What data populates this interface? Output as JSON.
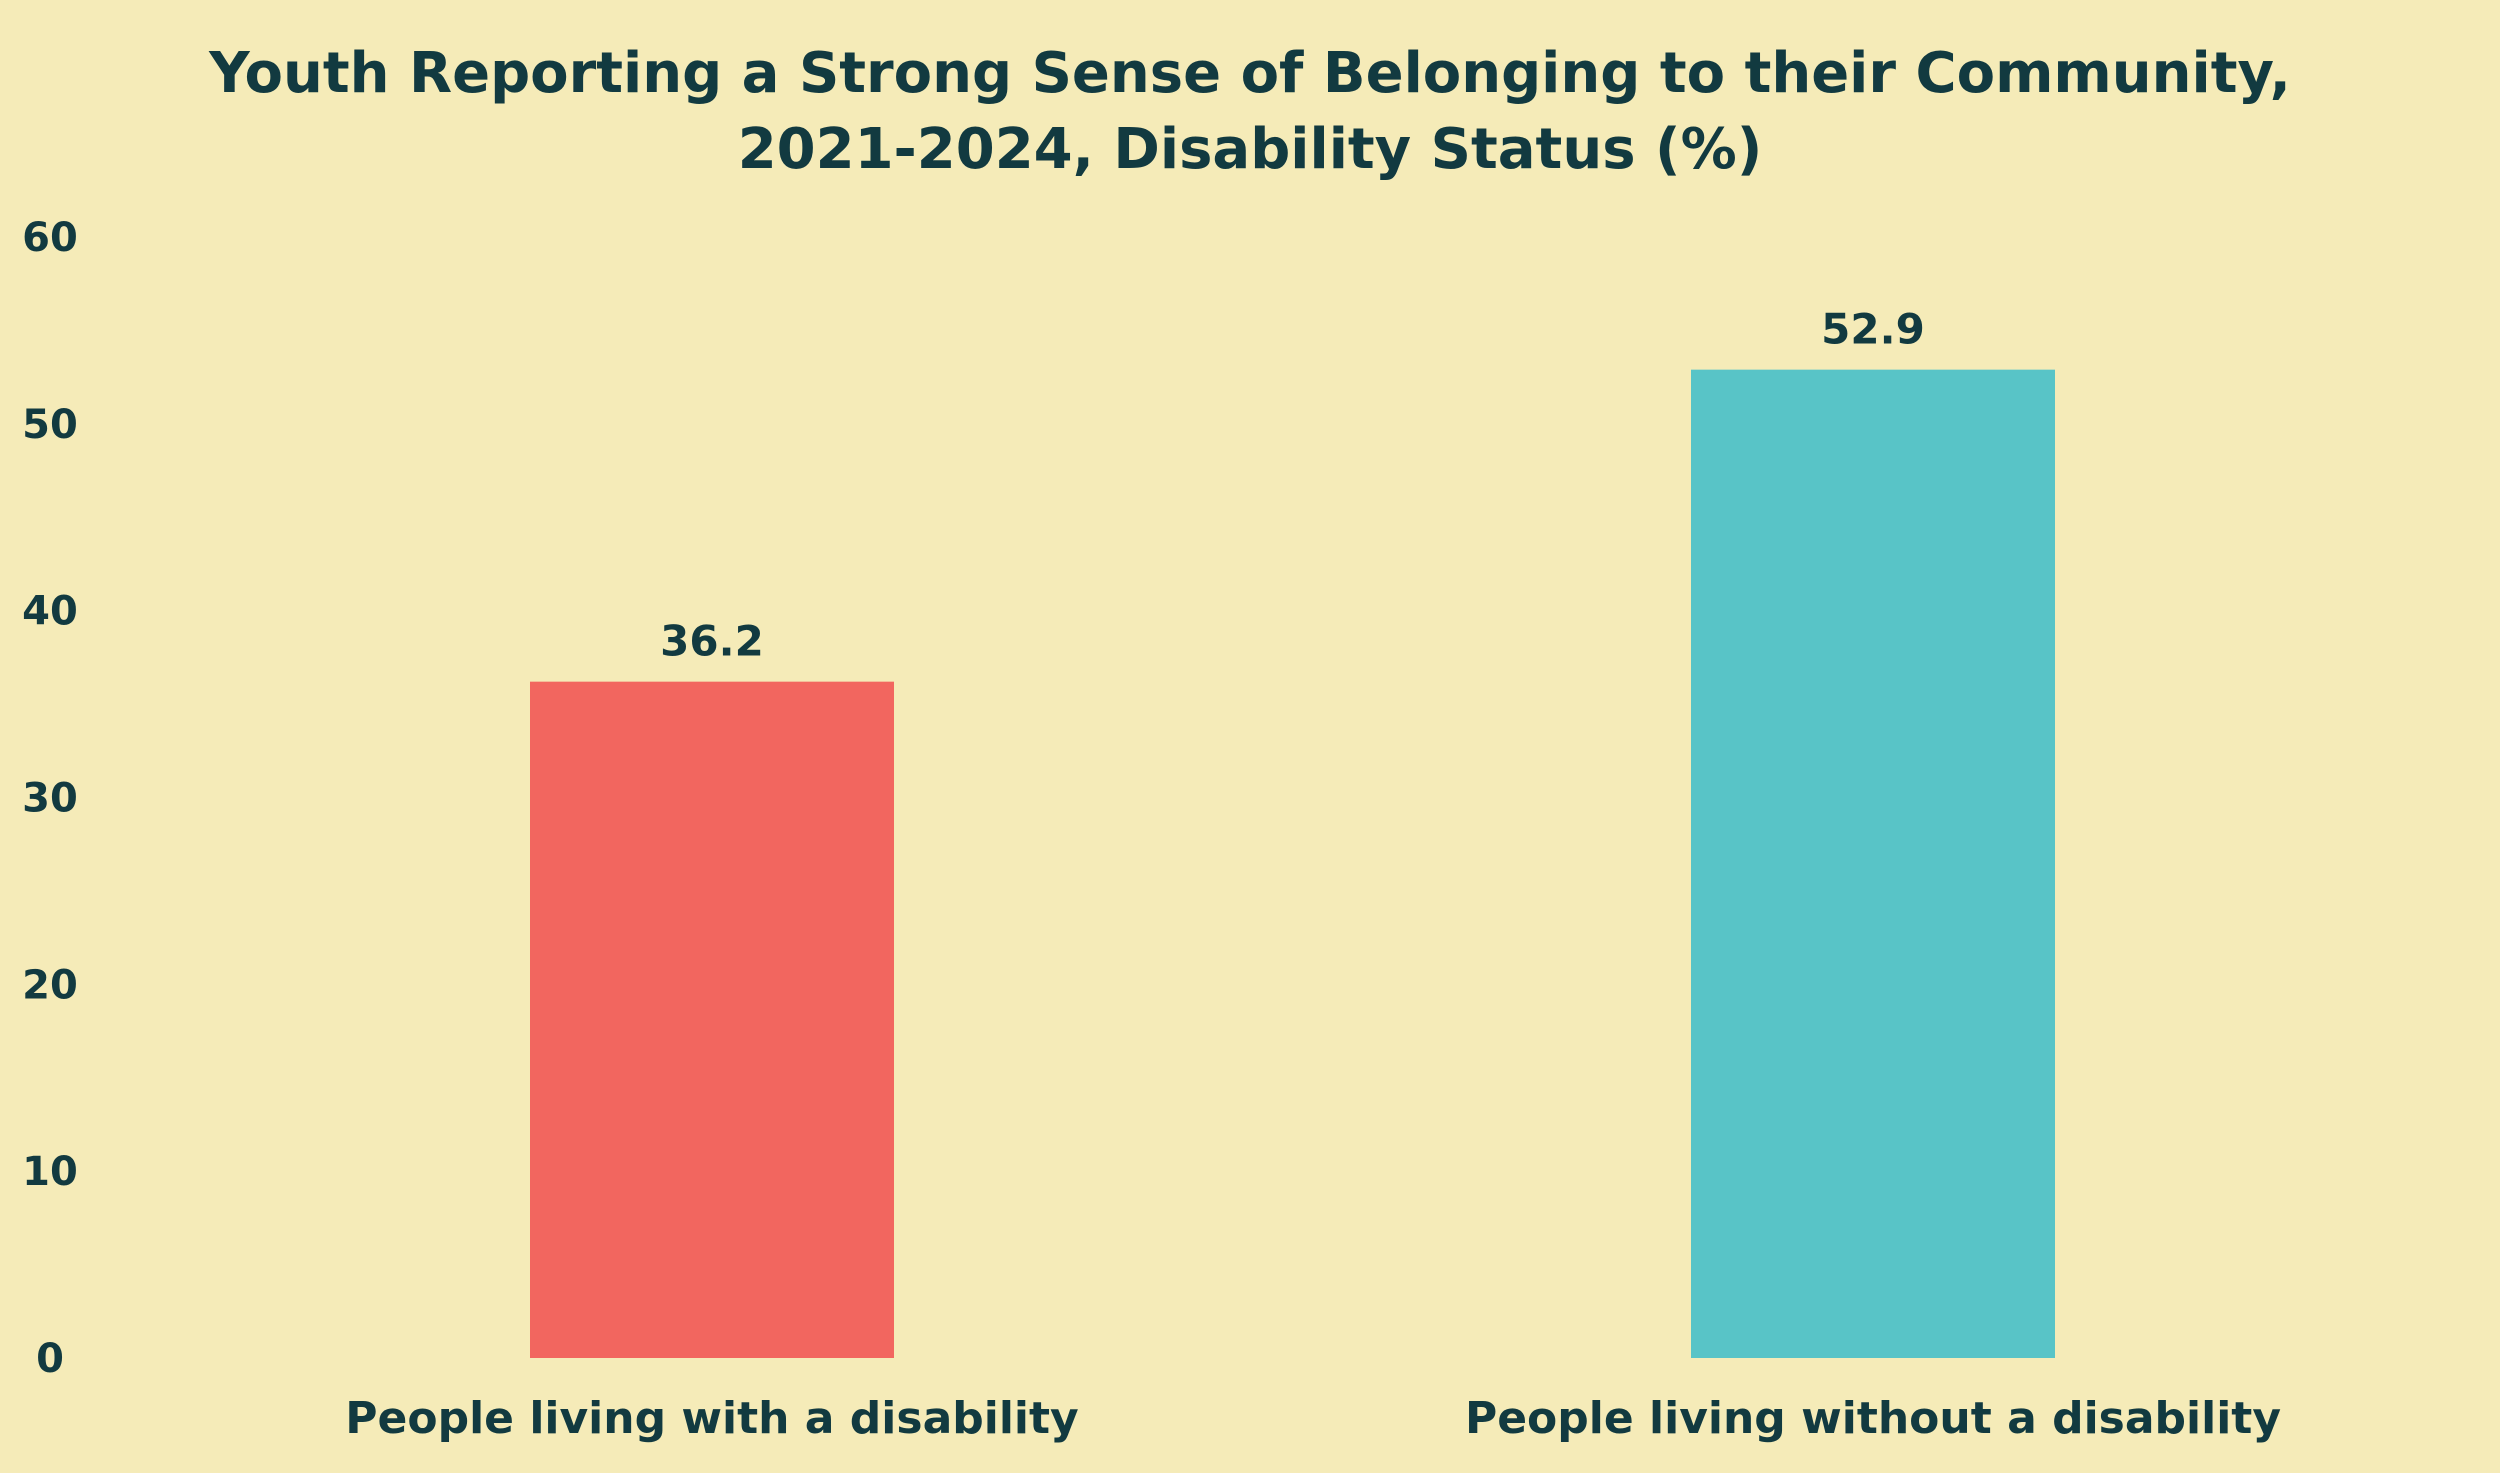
{
  "chart_data": {
    "type": "bar",
    "title_lines": [
      "Youth Reporting a Strong Sense of Belonging to their Community,",
      "2021-2024, Disability Status (%)"
    ],
    "categories": [
      "People living with a disability",
      "People living without a disability"
    ],
    "values": [
      36.2,
      52.9
    ],
    "value_labels": [
      "36.2",
      "52.9"
    ],
    "bar_colors": [
      "#F2665F",
      "#58C4C7"
    ],
    "ylim": [
      0,
      60
    ],
    "yticks": [
      "0",
      "10",
      "20",
      "30",
      "40",
      "50",
      "60"
    ],
    "xlabel": "",
    "ylabel": "",
    "grid": false,
    "legend": "none"
  },
  "colors": {
    "background": "#F5EBB8",
    "text": "#123A40"
  }
}
